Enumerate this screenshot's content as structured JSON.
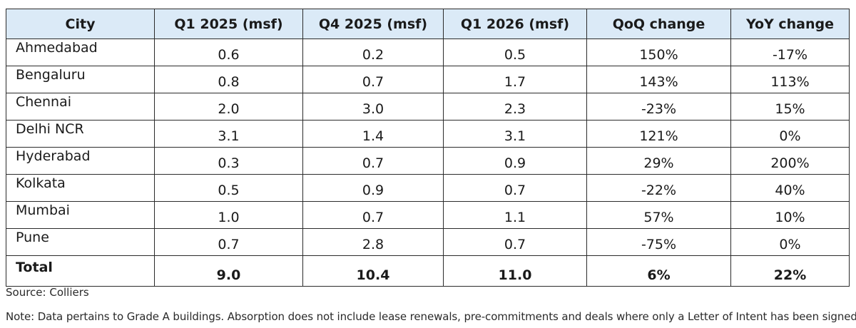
{
  "table": {
    "headers": [
      "City",
      "Q1 2025 (msf)",
      "Q4 2025 (msf)",
      "Q1 2026 (msf)",
      "QoQ change",
      "YoY change"
    ],
    "rows": [
      [
        "Ahmedabad",
        "0.6",
        "0.2",
        "0.5",
        "150%",
        "-17%"
      ],
      [
        "Bengaluru",
        "0.8",
        "0.7",
        "1.7",
        "143%",
        "113%"
      ],
      [
        "Chennai",
        "2.0",
        "3.0",
        "2.3",
        "-23%",
        "15%"
      ],
      [
        "Delhi NCR",
        "3.1",
        "1.4",
        "3.1",
        "121%",
        "0%"
      ],
      [
        "Hyderabad",
        "0.3",
        "0.7",
        "0.9",
        "29%",
        "200%"
      ],
      [
        "Kolkata",
        "0.5",
        "0.9",
        "0.7",
        "-22%",
        "40%"
      ],
      [
        "Mumbai",
        "1.0",
        "0.7",
        "1.1",
        "57%",
        "10%"
      ],
      [
        "Pune",
        "0.7",
        "2.8",
        "0.7",
        "-75%",
        "0%"
      ]
    ],
    "total": [
      "Total",
      "9.0",
      "10.4",
      "11.0",
      "6%",
      "22%"
    ]
  },
  "source": "Source: Colliers",
  "note": "Note: Data pertains to Grade A buildings. Absorption does not include lease renewals, pre-commitments and deals where only a Letter of Intent has been signed.",
  "colors": {
    "header_bg": "#dbeaf7",
    "border": "#2b2b2b"
  }
}
